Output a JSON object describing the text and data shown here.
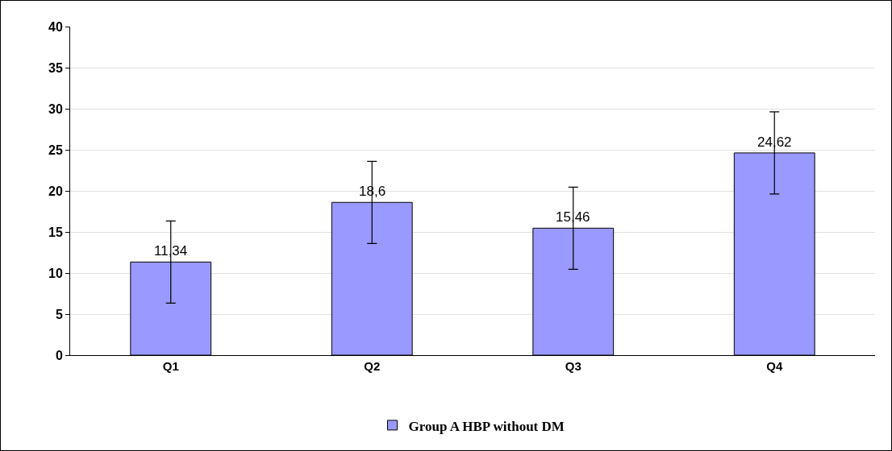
{
  "chart_data": {
    "type": "bar",
    "categories": [
      "Q1",
      "Q2",
      "Q3",
      "Q4"
    ],
    "series": [
      {
        "name": "Group A HBP without DM",
        "color": "#9999ff",
        "values": [
          11.34,
          18.6,
          15.46,
          24.62
        ],
        "errors": [
          5,
          5,
          5,
          5
        ],
        "value_labels": [
          "11,34",
          "18,6",
          "15,46",
          "24,62"
        ]
      }
    ],
    "ylim": [
      0,
      40
    ],
    "yticks": [
      0,
      5,
      10,
      15,
      20,
      25,
      30,
      35,
      40
    ],
    "grid": "y",
    "legend": "bottom"
  }
}
